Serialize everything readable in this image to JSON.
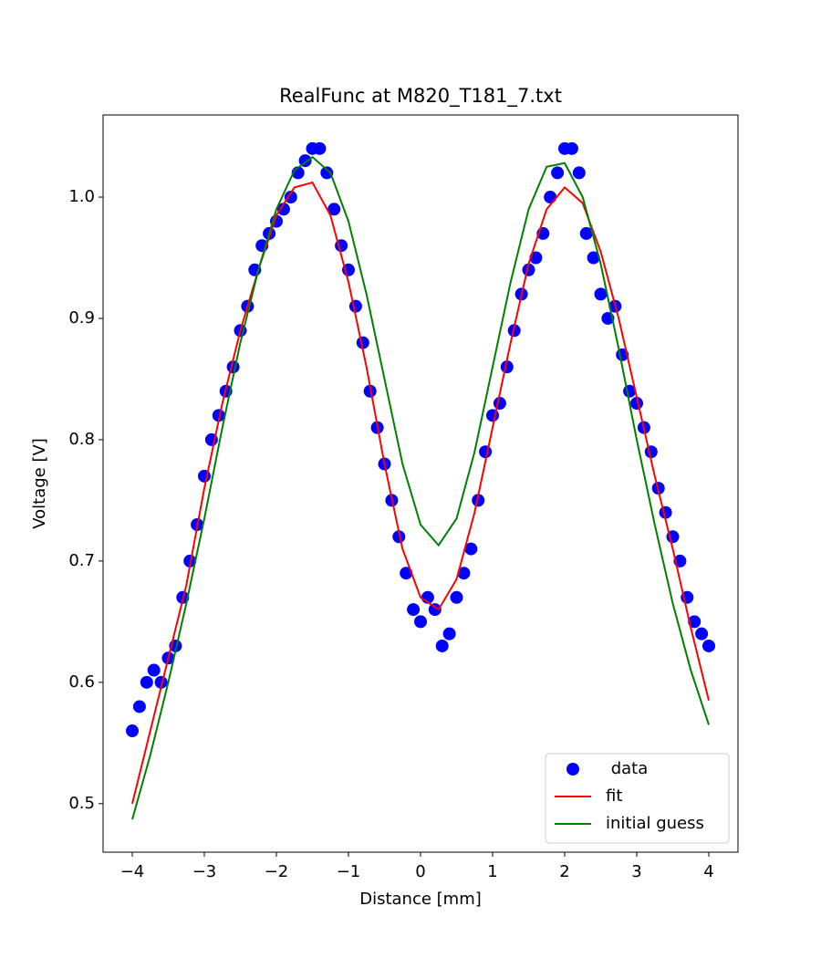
{
  "chart_data": {
    "type": "scatter",
    "title": "RealFunc at M820_T181_7.txt",
    "xlabel": "Distance [mm]",
    "ylabel": "Voltage [V]",
    "xlim": [
      -4.405,
      4.405
    ],
    "ylim": [
      0.46,
      1.0677
    ],
    "xticks": [
      {
        "value": -4,
        "label": "−4"
      },
      {
        "value": -3,
        "label": "−3"
      },
      {
        "value": -2,
        "label": "−2"
      },
      {
        "value": -1,
        "label": "−1"
      },
      0,
      1,
      2,
      3,
      4
    ],
    "yticks": [
      0.5,
      0.6,
      0.7,
      0.8,
      0.9,
      {
        "value": 1,
        "label": "1.0"
      }
    ],
    "legend": "lower right",
    "series": [
      {
        "name": " data",
        "type": "scatter",
        "color": "#0000ff",
        "x": [
          -4.0,
          -3.9,
          -3.8,
          -3.7,
          -3.6,
          -3.5,
          -3.4,
          -3.3,
          -3.2,
          -3.1,
          -3.0,
          -2.9,
          -2.8,
          -2.7,
          -2.6,
          -2.5,
          -2.4,
          -2.3,
          -2.2,
          -2.1,
          -2.0,
          -1.9,
          -1.8,
          -1.7,
          -1.6,
          -1.5,
          -1.4,
          -1.3,
          -1.2,
          -1.1,
          -1.0,
          -0.9,
          -0.8,
          -0.7,
          -0.6,
          -0.5,
          -0.4,
          -0.3,
          -0.2,
          -0.1,
          0.0,
          0.1,
          0.2,
          0.3,
          0.4,
          0.5,
          0.6,
          0.7,
          0.8,
          0.9,
          1.0,
          1.1,
          1.2,
          1.3,
          1.4,
          1.5,
          1.6,
          1.7,
          1.8,
          1.9,
          2.0,
          2.1,
          2.2,
          2.3,
          2.4,
          2.5,
          2.6,
          2.7,
          2.8,
          2.9,
          3.0,
          3.1,
          3.2,
          3.3,
          3.4,
          3.5,
          3.6,
          3.7,
          3.8,
          3.9,
          4.0
        ],
        "values": [
          0.56,
          0.58,
          0.6,
          0.61,
          0.6,
          0.62,
          0.63,
          0.67,
          0.7,
          0.73,
          0.77,
          0.8,
          0.82,
          0.84,
          0.86,
          0.89,
          0.91,
          0.94,
          0.96,
          0.97,
          0.98,
          0.99,
          1.0,
          1.02,
          1.03,
          1.04,
          1.04,
          1.02,
          0.99,
          0.96,
          0.94,
          0.91,
          0.88,
          0.84,
          0.81,
          0.78,
          0.75,
          0.72,
          0.69,
          0.66,
          0.65,
          0.67,
          0.66,
          0.63,
          0.64,
          0.67,
          0.69,
          0.71,
          0.75,
          0.79,
          0.82,
          0.83,
          0.86,
          0.89,
          0.92,
          0.94,
          0.95,
          0.97,
          1.0,
          1.02,
          1.04,
          1.04,
          1.02,
          0.97,
          0.95,
          0.92,
          0.9,
          0.91,
          0.87,
          0.84,
          0.83,
          0.81,
          0.79,
          0.76,
          0.74,
          0.72,
          0.7,
          0.67,
          0.65,
          0.64,
          0.63
        ]
      },
      {
        "name": "fit",
        "type": "line",
        "color": "#ff0000",
        "x": [
          -4,
          -3.75,
          -3.5,
          -3.25,
          -3,
          -2.75,
          -2.5,
          -2.25,
          -2,
          -1.75,
          -1.5,
          -1.25,
          -1,
          -0.75,
          -0.5,
          -0.25,
          0,
          0.25,
          0.5,
          0.75,
          1,
          1.25,
          1.5,
          1.75,
          2,
          2.25,
          2.5,
          2.75,
          3,
          3.25,
          3.5,
          3.75,
          4
        ],
        "values": [
          0.5,
          0.56,
          0.62,
          0.68,
          0.76,
          0.83,
          0.89,
          0.94,
          0.985,
          1.008,
          1.012,
          0.985,
          0.93,
          0.86,
          0.78,
          0.71,
          0.67,
          0.66,
          0.685,
          0.74,
          0.81,
          0.88,
          0.945,
          0.99,
          1.008,
          0.995,
          0.955,
          0.9,
          0.835,
          0.77,
          0.71,
          0.645,
          0.585
        ]
      },
      {
        "name": "initial guess",
        "type": "line",
        "color": "#008000",
        "x": [
          -4,
          -3.75,
          -3.5,
          -3.25,
          -3,
          -2.75,
          -2.5,
          -2.25,
          -2,
          -1.75,
          -1.5,
          -1.25,
          -1,
          -0.75,
          -0.5,
          -0.25,
          0,
          0.25,
          0.5,
          0.75,
          1,
          1.25,
          1.5,
          1.75,
          2,
          2.25,
          2.5,
          2.75,
          3,
          3.25,
          3.5,
          3.75,
          4
        ],
        "values": [
          0.487,
          0.54,
          0.6,
          0.665,
          0.735,
          0.81,
          0.88,
          0.94,
          0.99,
          1.022,
          1.033,
          1.02,
          0.98,
          0.92,
          0.85,
          0.78,
          0.73,
          0.713,
          0.735,
          0.79,
          0.86,
          0.93,
          0.99,
          1.025,
          1.028,
          1.0,
          0.945,
          0.875,
          0.8,
          0.73,
          0.665,
          0.61,
          0.565
        ]
      }
    ]
  }
}
